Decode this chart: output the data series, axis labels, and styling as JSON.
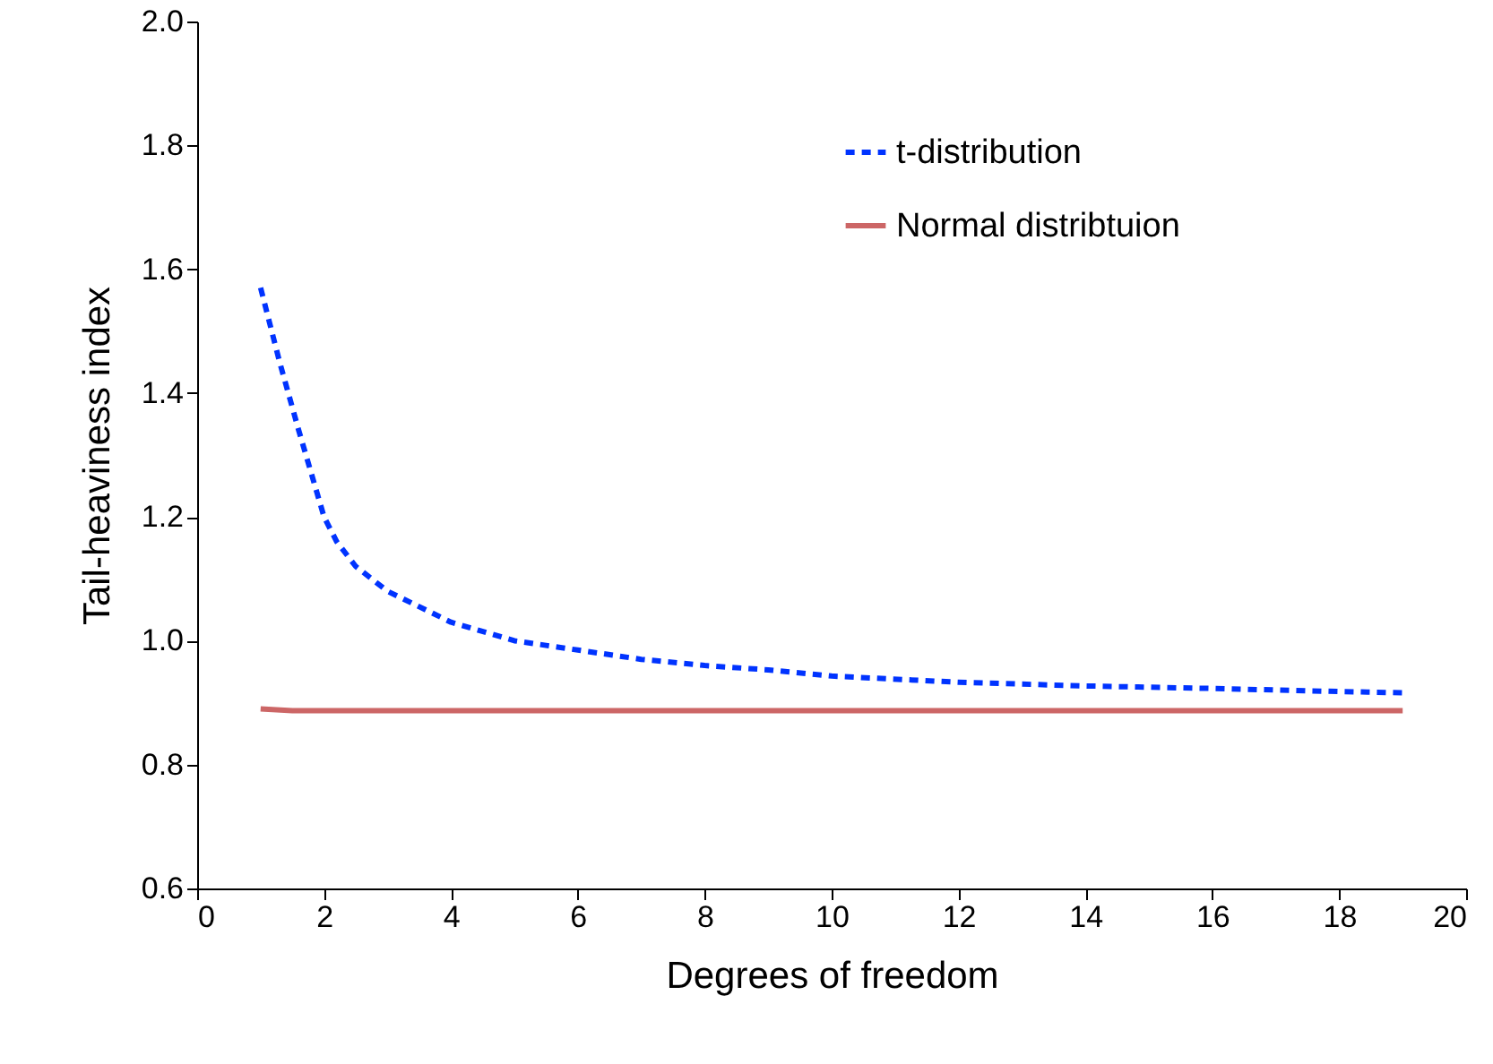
{
  "chart_data": {
    "type": "line",
    "xlabel": "Degrees of freedom",
    "ylabel": "Tail-heaviness index",
    "xlim": [
      0,
      20
    ],
    "xticks": [
      0,
      2,
      4,
      6,
      8,
      10,
      12,
      14,
      16,
      18,
      20
    ],
    "ylim": [
      0.6,
      2.0
    ],
    "yticks": [
      0.6,
      0.8,
      {
        "value": 1.0,
        "label": "1.0"
      },
      1.2,
      1.4,
      1.6,
      1.8,
      {
        "value": 2.0,
        "label": "2.0"
      }
    ],
    "grid": false,
    "legend": "top right",
    "marker": "none",
    "series": [
      {
        "name": "t-distribution",
        "color": "#0033ff",
        "line_style": "dashed",
        "x": [
          1,
          1.3,
          1.6,
          2,
          2.2,
          2.5,
          3,
          4,
          5,
          6,
          7,
          8,
          9,
          10,
          12,
          14,
          16,
          18,
          19
        ],
        "values": [
          1.57,
          1.45,
          1.34,
          1.2,
          1.16,
          1.12,
          1.08,
          1.03,
          1.0,
          0.985,
          0.97,
          0.96,
          0.953,
          0.943,
          0.933,
          0.927,
          0.923,
          0.918,
          0.916
        ]
      },
      {
        "name": "Normal distribtuion",
        "color": "#cc6666",
        "line_style": "solid",
        "x": [
          1,
          1.5,
          2,
          4,
          6,
          8,
          10,
          12,
          14,
          16,
          18,
          19
        ],
        "values": [
          0.89,
          0.887,
          0.887,
          0.887,
          0.887,
          0.887,
          0.887,
          0.887,
          0.887,
          0.887,
          0.887,
          0.887
        ]
      }
    ]
  }
}
